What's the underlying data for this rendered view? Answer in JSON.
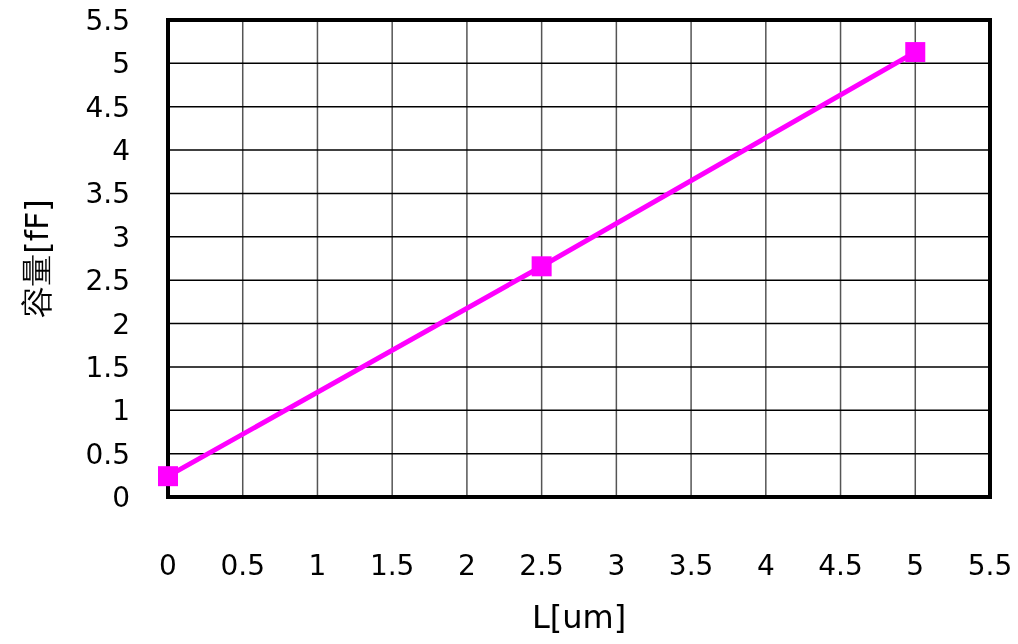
{
  "chart_data": {
    "type": "line",
    "xlabel": "L[um]",
    "ylabel": "容量[fF]",
    "x": [
      0,
      2.5,
      5
    ],
    "series": [
      {
        "color": "#ff00ff",
        "values": [
          0.24,
          2.66,
          5.13
        ]
      }
    ],
    "xlim": [
      0,
      5.5
    ],
    "ylim": [
      0,
      5.5
    ],
    "xticks": [
      0,
      0.5,
      1,
      1.5,
      2,
      2.5,
      3,
      3.5,
      4,
      4.5,
      5,
      5.5
    ],
    "yticks": [
      0,
      0.5,
      1,
      1.5,
      2,
      2.5,
      3,
      3.5,
      4,
      4.5,
      5,
      5.5
    ],
    "grid": true,
    "marker": "square",
    "line_style": "solid"
  }
}
